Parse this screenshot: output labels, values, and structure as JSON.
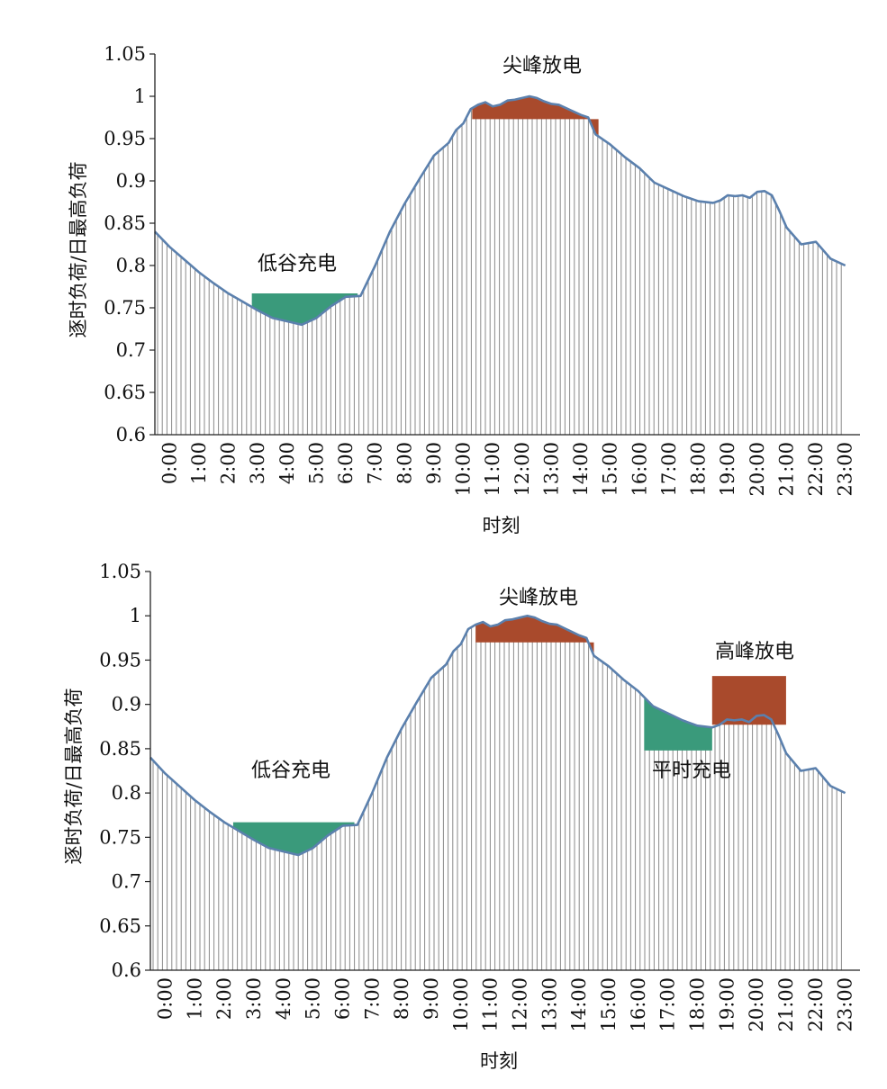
{
  "chart_data": [
    {
      "type": "area",
      "xlabel": "时刻",
      "ylabel": "逐时负荷/日最高负荷",
      "ylim": [
        0.6,
        1.05
      ],
      "yticks": [
        "1.05",
        "1",
        "0.95",
        "0.9",
        "0.85",
        "0.8",
        "0.75",
        "0.7",
        "0.65",
        "0.6"
      ],
      "xticks": [
        "0:00",
        "1:00",
        "2:00",
        "3:00",
        "4:00",
        "5:00",
        "6:00",
        "7:00",
        "8:00",
        "9:00",
        "10:00",
        "11:00",
        "12:00",
        "13:00",
        "14:00",
        "15:00",
        "16:00",
        "17:00",
        "18:00",
        "19:00",
        "20:00",
        "21:00",
        "22:00",
        "23:00"
      ],
      "x_hours": [
        0,
        0.5,
        1,
        1.5,
        2,
        2.5,
        3,
        3.5,
        4,
        4.5,
        5,
        5.5,
        6,
        6.5,
        7,
        7.5,
        8,
        8.5,
        9,
        9.5,
        10,
        10.25,
        10.5,
        10.75,
        11,
        11.25,
        11.5,
        11.75,
        12,
        12.25,
        12.5,
        12.75,
        13,
        13.25,
        13.5,
        13.75,
        14,
        14.25,
        14.5,
        14.75,
        15,
        15.5,
        16,
        16.5,
        17,
        17.5,
        18,
        18.5,
        19,
        19.25,
        19.5,
        19.75,
        20,
        20.25,
        20.5,
        20.75,
        21,
        21.25,
        21.5,
        22,
        22.5,
        23,
        23.5
      ],
      "load": [
        0.84,
        0.822,
        0.807,
        0.792,
        0.779,
        0.767,
        0.757,
        0.747,
        0.738,
        0.734,
        0.73,
        0.738,
        0.752,
        0.763,
        0.764,
        0.8,
        0.84,
        0.873,
        0.902,
        0.93,
        0.945,
        0.96,
        0.968,
        0.985,
        0.99,
        0.993,
        0.988,
        0.99,
        0.995,
        0.996,
        0.998,
        1.0,
        0.998,
        0.994,
        0.991,
        0.99,
        0.986,
        0.982,
        0.978,
        0.975,
        0.955,
        0.943,
        0.928,
        0.915,
        0.898,
        0.89,
        0.882,
        0.876,
        0.874,
        0.877,
        0.883,
        0.882,
        0.883,
        0.88,
        0.887,
        0.888,
        0.883,
        0.865,
        0.845,
        0.825,
        0.828,
        0.808,
        0.8
      ],
      "annotations": [
        {
          "label": "低谷充电",
          "kind": "charge",
          "color": "#3a9a7b",
          "start_hour": 3.3,
          "end_hour": 6.9,
          "level": 0.767,
          "bound": "load"
        },
        {
          "label": "尖峰放电",
          "kind": "discharge",
          "color": "#a94a2c",
          "start_hour": 10.8,
          "end_hour": 15.1,
          "level": 0.973,
          "bound": "load"
        }
      ]
    },
    {
      "type": "area",
      "xlabel": "时刻",
      "ylabel": "逐时负荷/日最高负荷",
      "ylim": [
        0.6,
        1.05
      ],
      "yticks": [
        "1.05",
        "1",
        "0.95",
        "0.9",
        "0.85",
        "0.8",
        "0.75",
        "0.7",
        "0.65",
        "0.6"
      ],
      "xticks": [
        "0:00",
        "1:00",
        "2:00",
        "3:00",
        "4:00",
        "5:00",
        "6:00",
        "7:00",
        "8:00",
        "9:00",
        "10:00",
        "11:00",
        "12:00",
        "13:00",
        "14:00",
        "15:00",
        "16:00",
        "17:00",
        "18:00",
        "19:00",
        "20:00",
        "21:00",
        "22:00",
        "23:00"
      ],
      "x_hours": [
        0,
        0.5,
        1,
        1.5,
        2,
        2.5,
        3,
        3.5,
        4,
        4.5,
        5,
        5.5,
        6,
        6.5,
        7,
        7.5,
        8,
        8.5,
        9,
        9.5,
        10,
        10.25,
        10.5,
        10.75,
        11,
        11.25,
        11.5,
        11.75,
        12,
        12.25,
        12.5,
        12.75,
        13,
        13.25,
        13.5,
        13.75,
        14,
        14.25,
        14.5,
        14.75,
        15,
        15.5,
        16,
        16.5,
        17,
        17.5,
        18,
        18.5,
        19,
        19.25,
        19.5,
        19.75,
        20,
        20.25,
        20.5,
        20.75,
        21,
        21.25,
        21.5,
        22,
        22.5,
        23,
        23.5
      ],
      "load": [
        0.84,
        0.822,
        0.807,
        0.792,
        0.779,
        0.767,
        0.757,
        0.747,
        0.738,
        0.734,
        0.73,
        0.738,
        0.752,
        0.763,
        0.764,
        0.8,
        0.84,
        0.873,
        0.902,
        0.93,
        0.945,
        0.96,
        0.968,
        0.985,
        0.99,
        0.993,
        0.988,
        0.99,
        0.995,
        0.996,
        0.998,
        1.0,
        0.998,
        0.994,
        0.991,
        0.99,
        0.986,
        0.982,
        0.978,
        0.975,
        0.955,
        0.943,
        0.928,
        0.915,
        0.898,
        0.89,
        0.882,
        0.876,
        0.874,
        0.877,
        0.883,
        0.882,
        0.883,
        0.88,
        0.887,
        0.888,
        0.883,
        0.865,
        0.845,
        0.825,
        0.828,
        0.808,
        0.8
      ],
      "annotations": [
        {
          "label": "低谷充电",
          "kind": "charge",
          "color": "#3a9a7b",
          "start_hour": 2.8,
          "end_hour": 6.9,
          "level": 0.767,
          "bound": "load"
        },
        {
          "label": "尖峰放电",
          "kind": "discharge",
          "color": "#a94a2c",
          "start_hour": 11.0,
          "end_hour": 15.0,
          "level": 0.97,
          "bound": "load"
        },
        {
          "label": "平时充电",
          "kind": "charge",
          "color": "#3a9a7b",
          "start_hour": 16.7,
          "end_hour": 19.0,
          "level": 0.848,
          "bound": "load"
        },
        {
          "label": "高峰放电",
          "kind": "discharge",
          "color": "#a94a2c",
          "start_hour": 19.0,
          "end_hour": 21.5,
          "level": 0.932,
          "bound": "box_bottom",
          "bottom": 0.877
        }
      ]
    }
  ]
}
